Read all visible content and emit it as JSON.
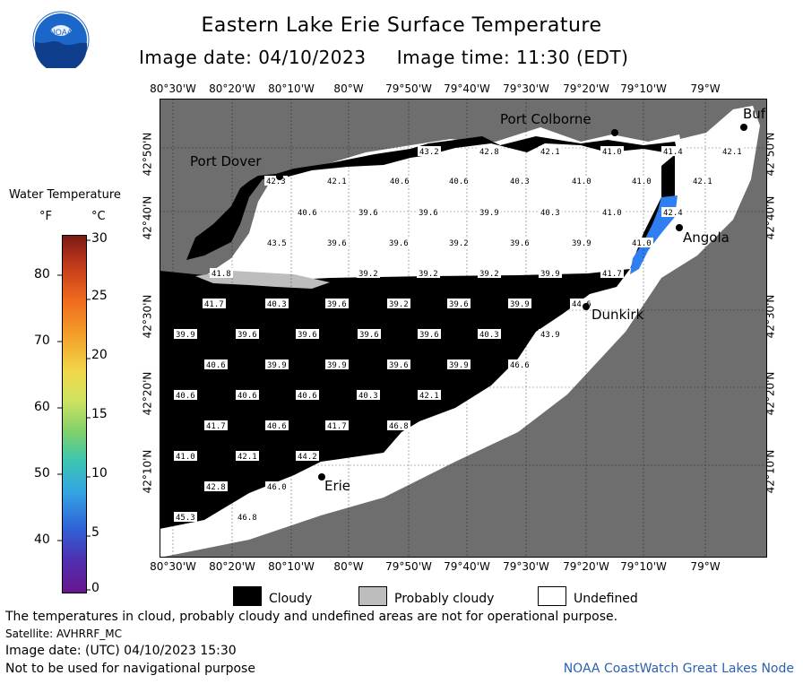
{
  "header": {
    "title": "Eastern Lake Erie Surface Temperature",
    "image_date_label": "Image date: 04/10/2023",
    "image_time_label": "Image time: 11:30 (EDT)"
  },
  "logo_text": "NOAA",
  "legend": {
    "title": "Water Temperature",
    "unit_f": "°F",
    "unit_c": "°C",
    "f_ticks": [
      "80",
      "70",
      "60",
      "50",
      "40"
    ],
    "c_ticks": [
      "30",
      "25",
      "20",
      "15",
      "10",
      "5",
      "0"
    ]
  },
  "axes": {
    "lon_labels": [
      "80°30'W",
      "80°20'W",
      "80°10'W",
      "80°W",
      "79°50'W",
      "79°40'W",
      "79°30'W",
      "79°20'W",
      "79°10'W",
      "79°W"
    ],
    "lat_labels": [
      "42°50'N",
      "42°40'N",
      "42°30'N",
      "42°20'N",
      "42°10'N"
    ]
  },
  "cities": {
    "port_colborne": "Port Colborne",
    "port_dover": "Port Dover",
    "angola": "Angola",
    "dunkirk": "Dunkirk",
    "erie": "Erie",
    "buffalo": "Buf"
  },
  "temperature_labels": [
    "43.2",
    "42.8",
    "42.1",
    "41.0",
    "41.4",
    "42.1",
    "42.3",
    "42.1",
    "40.6",
    "40.6",
    "40.3",
    "41.0",
    "41.0",
    "42.1",
    "40.6",
    "39.6",
    "39.6",
    "39.9",
    "40.3",
    "41.0",
    "42.4",
    "43.5",
    "39.6",
    "39.6",
    "39.2",
    "39.6",
    "39.9",
    "41.0",
    "41.8",
    "39.2",
    "39.2",
    "39.2",
    "39.9",
    "41.7",
    "41.7",
    "40.3",
    "39.6",
    "39.2",
    "39.6",
    "39.9",
    "44.6",
    "39.9",
    "39.6",
    "39.6",
    "39.6",
    "39.6",
    "40.3",
    "43.9",
    "40.6",
    "39.9",
    "39.9",
    "39.6",
    "39.9",
    "46.6",
    "40.6",
    "40.6",
    "40.6",
    "40.3",
    "42.1",
    "41.7",
    "40.6",
    "41.7",
    "46.8",
    "41.0",
    "42.1",
    "44.2",
    "42.8",
    "46.0",
    "45.3",
    "46.8"
  ],
  "map_key": {
    "cloudy": "Cloudy",
    "probably_cloudy": "Probably cloudy",
    "undefined": "Undefined"
  },
  "footer": {
    "disclaimer": "The temperatures in cloud, probably cloudy and undefined areas are not for operational purpose.",
    "satellite": "Satellite: AVHRRF_MC",
    "utc_date": "Image date: (UTC) 04/10/2023  15:30",
    "nav_warning": "Not to be used for navigational purpose",
    "credit": "NOAA CoastWatch Great Lakes Node"
  },
  "colors": {
    "land": "#6e6e6e",
    "cloud": "#000000",
    "undefined": "#ffffff",
    "probably_cloudy": "#bdbdbd",
    "warm_pixels": "#2f7ff2"
  }
}
